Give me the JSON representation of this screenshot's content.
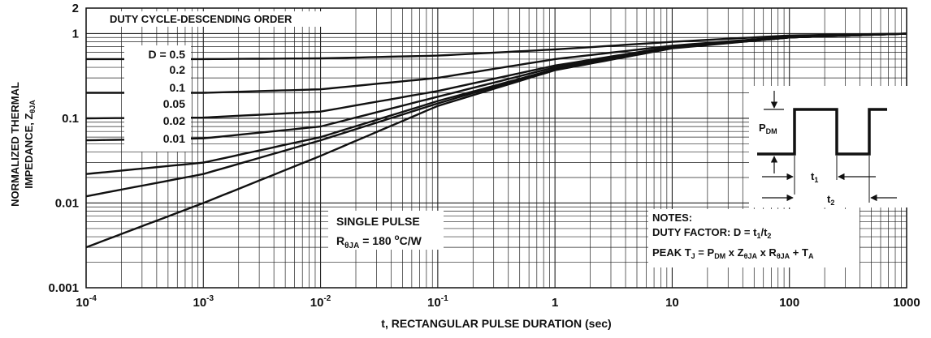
{
  "chart_data": {
    "type": "line",
    "xscale": "log",
    "yscale": "log",
    "xlim": [
      0.0001,
      1000
    ],
    "ylim": [
      0.001,
      2
    ],
    "grid": true,
    "x_ticks": [
      {
        "value": 0.0001,
        "base": "10",
        "exp": "-4"
      },
      {
        "value": 0.001,
        "base": "10",
        "exp": "-3"
      },
      {
        "value": 0.01,
        "base": "10",
        "exp": "-2"
      },
      {
        "value": 0.1,
        "base": "10",
        "exp": "-1"
      },
      {
        "value": 1,
        "base": "1",
        "exp": ""
      },
      {
        "value": 10,
        "base": "10",
        "exp": ""
      },
      {
        "value": 100,
        "base": "100",
        "exp": ""
      },
      {
        "value": 1000,
        "base": "1000",
        "exp": ""
      }
    ],
    "y_ticks": [
      {
        "value": 2,
        "label": "2"
      },
      {
        "value": 1,
        "label": "1"
      },
      {
        "value": 0.1,
        "label": "0.1"
      },
      {
        "value": 0.01,
        "label": "0.01"
      },
      {
        "value": 0.001,
        "label": "0.001"
      }
    ],
    "xlabel": "t, RECTANGULAR PULSE DURATION (sec)",
    "ylabel_line1": "NORMALIZED THERMAL",
    "ylabel_line2_main": "IMPEDANCE, Z",
    "ylabel_line2_sub": "θJA",
    "box_title": "DUTY CYCLE-DESCENDING ORDER",
    "legend": [
      "D = 0.5",
      "0.2",
      "0.1",
      "0.05",
      "0.02",
      "0.01"
    ],
    "series": [
      {
        "name": "D = 0.5",
        "x": [
          0.0001,
          0.001,
          0.01,
          0.1,
          1,
          10,
          100,
          1000
        ],
        "y": [
          0.5,
          0.5,
          0.51,
          0.55,
          0.65,
          0.8,
          0.95,
          1.0
        ]
      },
      {
        "name": "0.2",
        "x": [
          0.0001,
          0.001,
          0.01,
          0.1,
          1,
          10,
          100,
          1000
        ],
        "y": [
          0.2,
          0.2,
          0.22,
          0.3,
          0.5,
          0.72,
          0.92,
          1.0
        ]
      },
      {
        "name": "0.1",
        "x": [
          0.0001,
          0.001,
          0.01,
          0.1,
          1,
          10,
          100,
          1000
        ],
        "y": [
          0.1,
          0.102,
          0.12,
          0.21,
          0.42,
          0.7,
          0.9,
          1.0
        ]
      },
      {
        "name": "0.05",
        "x": [
          0.0001,
          0.001,
          0.01,
          0.1,
          1,
          10,
          100,
          1000
        ],
        "y": [
          0.055,
          0.058,
          0.08,
          0.18,
          0.4,
          0.68,
          0.9,
          1.0
        ]
      },
      {
        "name": "0.02",
        "x": [
          0.0001,
          0.001,
          0.01,
          0.1,
          1,
          10,
          100,
          1000
        ],
        "y": [
          0.022,
          0.03,
          0.06,
          0.16,
          0.38,
          0.68,
          0.9,
          1.0
        ]
      },
      {
        "name": "0.01",
        "x": [
          0.0001,
          0.001,
          0.01,
          0.1,
          1,
          10,
          100,
          1000
        ],
        "y": [
          0.012,
          0.022,
          0.055,
          0.15,
          0.38,
          0.68,
          0.9,
          1.0
        ]
      },
      {
        "name": "SINGLE PULSE",
        "x": [
          0.0001,
          0.001,
          0.01,
          0.1,
          1,
          10,
          100,
          1000
        ],
        "y": [
          0.003,
          0.01,
          0.036,
          0.14,
          0.37,
          0.67,
          0.9,
          1.0
        ]
      }
    ],
    "single_pulse_label": "SINGLE PULSE",
    "rthja_main": "R",
    "rthja_sub": "θJA",
    "rthja_rest": " = 180 ",
    "rthja_sup": "o",
    "rthja_unit": "C/W",
    "notes_title": "NOTES:",
    "notes_duty_main": "DUTY FACTOR: D = t",
    "notes_duty_sub1": "1",
    "notes_duty_mid": "/t",
    "notes_duty_sub2": "2",
    "notes_peak_a": "PEAK T",
    "notes_peak_j": "J",
    "notes_peak_b": " = P",
    "notes_peak_dm": "DM",
    "notes_peak_c": " x Z",
    "notes_peak_z_sub": "θJA",
    "notes_peak_d": " x R",
    "notes_peak_r_sub": "θJA",
    "notes_peak_e": " + T",
    "notes_peak_a_sub": "A",
    "inset_p": "P",
    "inset_p_sub": "DM",
    "inset_t1": "t",
    "inset_t1_sub": "1",
    "inset_t2": "t",
    "inset_t2_sub": "2"
  }
}
